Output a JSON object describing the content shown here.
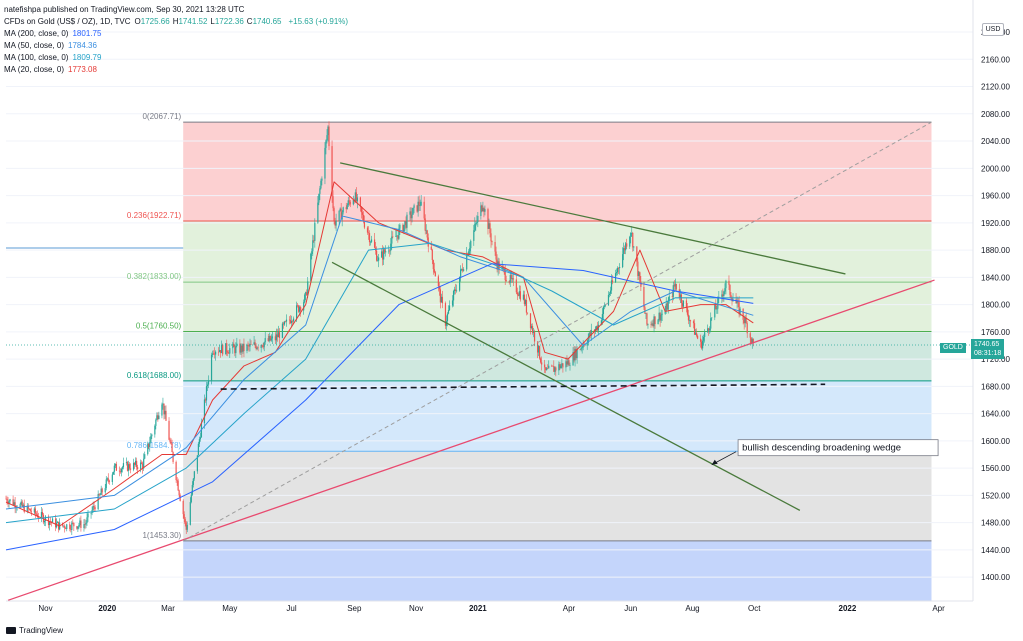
{
  "header": {
    "published": "natefishpa published on TradingView.com, Sep 30, 2021 13:28 UTC",
    "symbol": "CFDs on Gold (US$ / OZ), 1D, TVC",
    "ohlc": [
      {
        "k": "O",
        "v": "1725.66"
      },
      {
        "k": "H",
        "v": "1741.52"
      },
      {
        "k": "L",
        "v": "1722.36"
      },
      {
        "k": "C",
        "v": "1740.65"
      }
    ],
    "change": "+15.63 (+0.91%)",
    "ma": [
      {
        "label": "MA (200, close, 0)",
        "value": "1801.75",
        "color": "#2962ff"
      },
      {
        "label": "MA (50, close, 0)",
        "value": "1784.36",
        "color": "#3b8fe0"
      },
      {
        "label": "MA (100, close, 0)",
        "value": "1809.79",
        "color": "#26a3c9"
      },
      {
        "label": "MA (20, close, 0)",
        "value": "1773.08",
        "color": "#e53935"
      }
    ]
  },
  "currency": "USD",
  "price_tag": {
    "symbol": "GOLD",
    "price": "1740.65",
    "time": "08:31:18"
  },
  "footer": {
    "brand": "TradingView"
  },
  "colors": {
    "up": "#26a69a",
    "down": "#ef5350",
    "fib_line": "#787b86",
    "text": "#131722"
  },
  "chart_data": {
    "type": "candlestick",
    "y_axis_labels": [
      1400,
      1440,
      1480,
      1520,
      1560,
      1600,
      1640,
      1680,
      1720,
      1760,
      1800,
      1840,
      1880,
      1920,
      1960,
      2000,
      2040,
      2080,
      2120,
      2160,
      2200
    ],
    "ylim": [
      1365,
      2225
    ],
    "x_axis_labels": [
      "Nov",
      "2020",
      "Mar",
      "May",
      "Jul",
      "Sep",
      "Nov",
      "2021",
      "Apr",
      "Jun",
      "Aug",
      "Oct",
      "2022",
      "Apr"
    ],
    "price_path": [
      [
        "2019-09-23",
        1515
      ],
      [
        "2019-10-20",
        1495
      ],
      [
        "2019-11-15",
        1475
      ],
      [
        "2019-12-10",
        1478
      ],
      [
        "2020-01-08",
        1560
      ],
      [
        "2020-02-05",
        1565
      ],
      [
        "2020-02-24",
        1660
      ],
      [
        "2020-03-19",
        1470
      ],
      [
        "2020-04-14",
        1735
      ],
      [
        "2020-05-15",
        1735
      ],
      [
        "2020-06-15",
        1750
      ],
      [
        "2020-07-15",
        1810
      ],
      [
        "2020-08-06",
        2060
      ],
      [
        "2020-08-12",
        1920
      ],
      [
        "2020-09-01",
        1960
      ],
      [
        "2020-09-25",
        1865
      ],
      [
        "2020-11-05",
        1950
      ],
      [
        "2020-11-30",
        1775
      ],
      [
        "2021-01-06",
        1950
      ],
      [
        "2021-01-20",
        1860
      ],
      [
        "2021-02-15",
        1810
      ],
      [
        "2021-03-08",
        1700
      ],
      [
        "2021-03-31",
        1715
      ],
      [
        "2021-04-30",
        1770
      ],
      [
        "2021-06-01",
        1910
      ],
      [
        "2021-06-17",
        1770
      ],
      [
        "2021-07-05",
        1790
      ],
      [
        "2021-07-15",
        1830
      ],
      [
        "2021-08-09",
        1740
      ],
      [
        "2021-08-20",
        1780
      ],
      [
        "2021-09-03",
        1830
      ],
      [
        "2021-09-22",
        1775
      ],
      [
        "2021-09-30",
        1740.65
      ]
    ],
    "moving_averages": [
      {
        "name": "MA (20, close, 0)",
        "color": "#e53935",
        "points": [
          [
            "2019-09-23",
            1510
          ],
          [
            "2019-11-15",
            1475
          ],
          [
            "2020-01-08",
            1530
          ],
          [
            "2020-02-24",
            1580
          ],
          [
            "2020-03-19",
            1580
          ],
          [
            "2020-04-14",
            1660
          ],
          [
            "2020-05-15",
            1710
          ],
          [
            "2020-06-15",
            1730
          ],
          [
            "2020-07-15",
            1800
          ],
          [
            "2020-08-12",
            1980
          ],
          [
            "2020-09-25",
            1920
          ],
          [
            "2020-11-30",
            1880
          ],
          [
            "2021-01-06",
            1870
          ],
          [
            "2021-02-15",
            1840
          ],
          [
            "2021-03-08",
            1730
          ],
          [
            "2021-03-31",
            1720
          ],
          [
            "2021-05-15",
            1790
          ],
          [
            "2021-06-10",
            1880
          ],
          [
            "2021-07-05",
            1790
          ],
          [
            "2021-08-09",
            1800
          ],
          [
            "2021-09-03",
            1800
          ],
          [
            "2021-09-30",
            1773.08
          ]
        ]
      },
      {
        "name": "MA (50, close, 0)",
        "color": "#3b8fe0",
        "points": [
          [
            "2019-09-23",
            1500
          ],
          [
            "2020-01-08",
            1520
          ],
          [
            "2020-03-19",
            1590
          ],
          [
            "2020-05-15",
            1690
          ],
          [
            "2020-07-15",
            1770
          ],
          [
            "2020-08-20",
            1930
          ],
          [
            "2020-10-15",
            1910
          ],
          [
            "2020-12-15",
            1870
          ],
          [
            "2021-02-15",
            1840
          ],
          [
            "2021-04-15",
            1740
          ],
          [
            "2021-06-01",
            1790
          ],
          [
            "2021-07-15",
            1820
          ],
          [
            "2021-09-30",
            1784.36
          ]
        ]
      },
      {
        "name": "MA (100, close, 0)",
        "color": "#26a3c9",
        "points": [
          [
            "2019-09-23",
            1480
          ],
          [
            "2020-01-08",
            1500
          ],
          [
            "2020-03-19",
            1560
          ],
          [
            "2020-05-15",
            1640
          ],
          [
            "2020-07-15",
            1720
          ],
          [
            "2020-09-15",
            1880
          ],
          [
            "2020-11-15",
            1890
          ],
          [
            "2021-01-15",
            1860
          ],
          [
            "2021-03-15",
            1820
          ],
          [
            "2021-05-15",
            1770
          ],
          [
            "2021-07-15",
            1810
          ],
          [
            "2021-09-30",
            1809.79
          ]
        ]
      },
      {
        "name": "MA (200, close, 0)",
        "color": "#2962ff",
        "points": [
          [
            "2019-09-23",
            1440
          ],
          [
            "2020-01-08",
            1470
          ],
          [
            "2020-04-14",
            1540
          ],
          [
            "2020-07-15",
            1660
          ],
          [
            "2020-10-15",
            1800
          ],
          [
            "2021-01-15",
            1860
          ],
          [
            "2021-04-15",
            1850
          ],
          [
            "2021-07-15",
            1820
          ],
          [
            "2021-09-30",
            1801.75
          ]
        ]
      }
    ],
    "fibonacci": {
      "start": "2020-03-16",
      "end": "2022-03-25",
      "levels": [
        {
          "ratio": "0",
          "price": 2067.71,
          "color": "#787b86",
          "fill": "#fcd0d1"
        },
        {
          "ratio": "0.236",
          "price": 1922.71,
          "color": "#ef5350",
          "fill": "#e2f1dc"
        },
        {
          "ratio": "0.382",
          "price": 1833.0,
          "color": "#81c784",
          "fill": "#e2f1dc"
        },
        {
          "ratio": "0.5",
          "price": 1760.5,
          "color": "#4caf50",
          "fill": "#cfe8df"
        },
        {
          "ratio": "0.618",
          "price": 1688.0,
          "color": "#089981",
          "fill": "#d4e8fb"
        },
        {
          "ratio": "0.786",
          "price": 1584.78,
          "color": "#64b5f6",
          "fill": "#e3e3e3"
        },
        {
          "ratio": "1",
          "price": 1453.3,
          "color": "#787b86",
          "fill": "#c4d5fb"
        }
      ]
    },
    "trendlines": [
      {
        "name": "upper-wedge",
        "color": "#4a7a3c",
        "from": [
          "2020-08-18",
          2008
        ],
        "to": [
          "2021-12-30",
          1845
        ]
      },
      {
        "name": "lower-wedge",
        "color": "#4a7a3c",
        "from": [
          "2020-08-10",
          1862
        ],
        "to": [
          "2021-11-15",
          1498
        ]
      },
      {
        "name": "support-line",
        "color": "#e84a6f",
        "from": [
          "2019-09-25",
          1366
        ],
        "to": [
          "2022-03-28",
          1836
        ]
      },
      {
        "name": "diagonal-dashed",
        "color": "#9e9e9e",
        "from": [
          "2020-03-16",
          1453.3
        ],
        "to": [
          "2022-03-25",
          2067.71
        ]
      },
      {
        "name": "horizontal-support",
        "color": "#131722",
        "from": [
          "2020-04-22",
          1676
        ],
        "to": [
          "2021-12-10",
          1683
        ]
      },
      {
        "name": "horizontal-blue",
        "color": "#5b9bd5",
        "from": [
          "2019-09-23",
          1883
        ],
        "to": [
          "2020-03-16",
          1883
        ]
      }
    ],
    "annotation": {
      "text": "bullish descending broadening wedge",
      "box_at": [
        "2021-09-15",
        1590
      ],
      "arrow_to": [
        "2021-08-20",
        1565
      ]
    }
  }
}
